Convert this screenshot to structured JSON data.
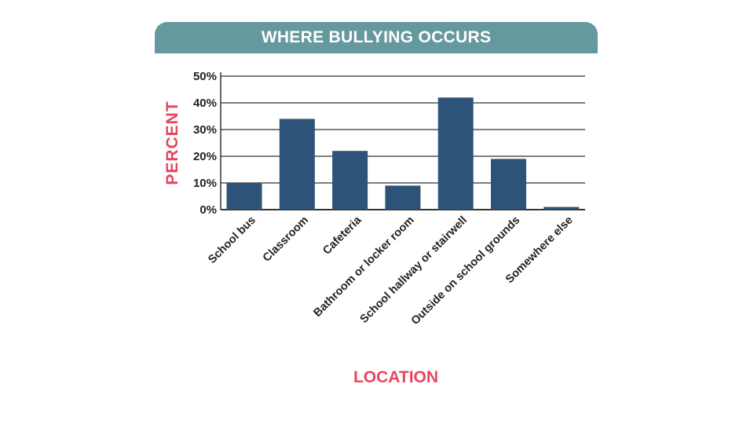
{
  "colors": {
    "title_bar": "#66999f",
    "bar": "#2d5478",
    "axis_label": "#e8455e",
    "grid": "#333333"
  },
  "chart_data": {
    "type": "bar",
    "title": "WHERE BULLYING OCCURS",
    "xlabel": "LOCATION",
    "ylabel": "PERCENT",
    "categories": [
      "School bus",
      "Classroom",
      "Cafeteria",
      "Bathroom or locker room",
      "School hallway or stairwell",
      "Outside on school grounds",
      "Somewhere else"
    ],
    "values": [
      10,
      34,
      22,
      9,
      42,
      19,
      1
    ],
    "ylim": [
      0,
      50
    ],
    "yticks": [
      0,
      10,
      20,
      30,
      40,
      50
    ],
    "ytick_labels": [
      "0%",
      "10%",
      "20%",
      "30%",
      "40%",
      "50%"
    ],
    "grid": true,
    "legend": "none"
  }
}
